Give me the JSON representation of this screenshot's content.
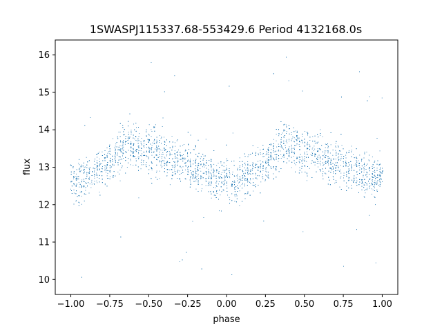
{
  "chart_data": {
    "type": "scatter",
    "title": "1SWASPJ115337.68-553429.6 Period 4132168.0s",
    "xlabel": "phase",
    "ylabel": "flux",
    "xlim": [
      -1.1,
      1.1
    ],
    "ylim": [
      9.6,
      16.4
    ],
    "x_ticks": [
      "−1.00",
      "−0.75",
      "−0.50",
      "−0.25",
      "0.00",
      "0.25",
      "0.50",
      "0.75",
      "1.00"
    ],
    "x_tick_values": [
      -1.0,
      -0.75,
      -0.5,
      -0.25,
      0.0,
      0.25,
      0.5,
      0.75,
      1.0
    ],
    "y_ticks": [
      "10",
      "11",
      "12",
      "13",
      "14",
      "15",
      "16"
    ],
    "y_tick_values": [
      10,
      11,
      12,
      13,
      14,
      15,
      16
    ],
    "grid": false,
    "marker_color": "#1f77b4",
    "series": [
      {
        "points_summary": "phase-folded light curve; points mirrored at phase ±0.5 offset",
        "profile": [
          {
            "x": -1.0,
            "y": 12.8,
            "spread": 0.5
          },
          {
            "x": -0.95,
            "y": 12.6,
            "spread": 0.6
          },
          {
            "x": -0.85,
            "y": 12.9,
            "spread": 0.5
          },
          {
            "x": -0.75,
            "y": 13.1,
            "spread": 0.5
          },
          {
            "x": -0.65,
            "y": 13.6,
            "spread": 0.6
          },
          {
            "x": -0.55,
            "y": 13.5,
            "spread": 0.6
          },
          {
            "x": -0.45,
            "y": 13.4,
            "spread": 0.55
          },
          {
            "x": -0.35,
            "y": 13.2,
            "spread": 0.5
          },
          {
            "x": -0.25,
            "y": 13.1,
            "spread": 0.55
          },
          {
            "x": -0.15,
            "y": 12.9,
            "spread": 0.5
          },
          {
            "x": -0.05,
            "y": 12.7,
            "spread": 0.5
          },
          {
            "x": 0.0,
            "y": 12.8,
            "spread": 0.5
          },
          {
            "x": 0.05,
            "y": 12.6,
            "spread": 0.6
          },
          {
            "x": 0.15,
            "y": 12.9,
            "spread": 0.5
          },
          {
            "x": 0.25,
            "y": 13.1,
            "spread": 0.5
          },
          {
            "x": 0.35,
            "y": 13.6,
            "spread": 0.6
          },
          {
            "x": 0.45,
            "y": 13.5,
            "spread": 0.6
          },
          {
            "x": 0.55,
            "y": 13.4,
            "spread": 0.55
          },
          {
            "x": 0.65,
            "y": 13.2,
            "spread": 0.5
          },
          {
            "x": 0.75,
            "y": 13.1,
            "spread": 0.55
          },
          {
            "x": 0.85,
            "y": 12.9,
            "spread": 0.5
          },
          {
            "x": 0.95,
            "y": 12.7,
            "spread": 0.5
          },
          {
            "x": 1.0,
            "y": 12.8,
            "spread": 0.5
          }
        ]
      }
    ]
  }
}
